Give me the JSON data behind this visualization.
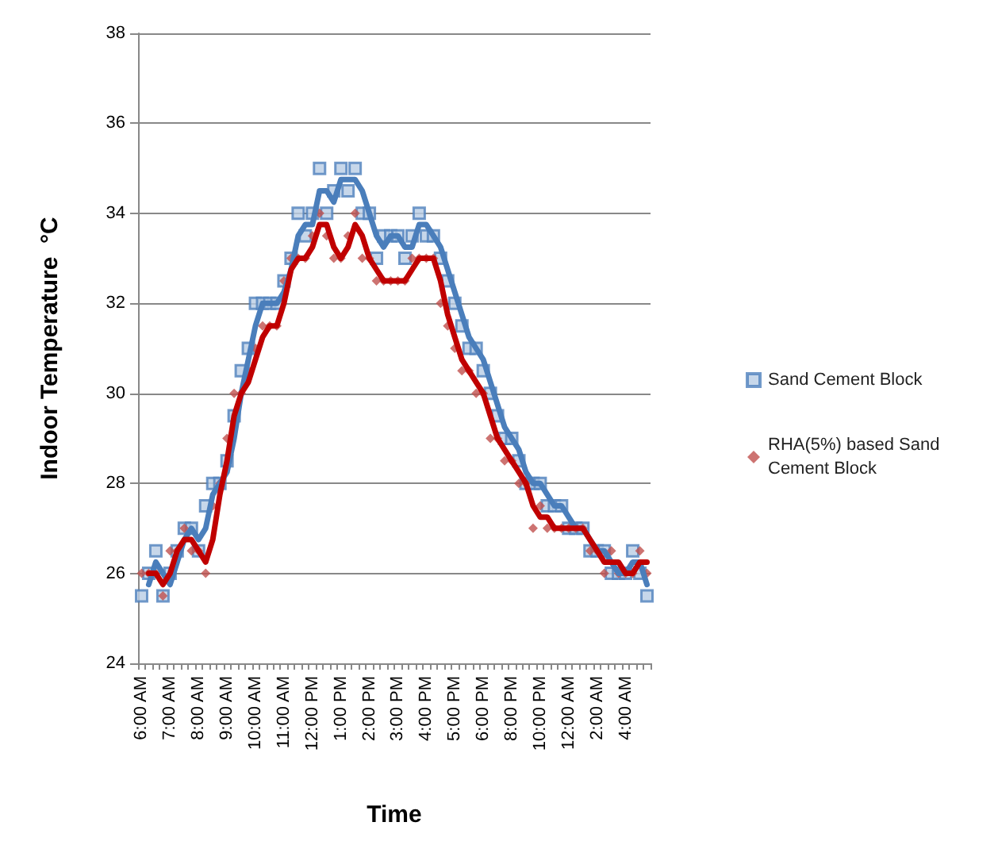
{
  "chart_data": {
    "type": "scatter",
    "xlabel": "Time",
    "ylabel": "Indoor Temperature  °C",
    "categories": [
      "6:00 AM",
      null,
      null,
      null,
      "7:00 AM",
      null,
      null,
      null,
      "8:00 AM",
      null,
      null,
      null,
      "9:00 AM",
      null,
      null,
      null,
      "10:00 AM",
      null,
      null,
      null,
      "11:00 AM",
      null,
      null,
      null,
      "12:00 PM",
      null,
      null,
      null,
      "1:00 PM",
      null,
      null,
      null,
      "2:00 PM",
      null,
      null,
      null,
      "3:00 PM",
      null,
      null,
      null,
      "4:00 PM",
      null,
      null,
      null,
      "5:00 PM",
      null,
      null,
      null,
      "6:00 PM",
      null,
      null,
      null,
      "8:00 PM",
      null,
      null,
      null,
      "10:00 PM",
      null,
      null,
      null,
      "12:00 AM",
      null,
      null,
      null,
      "2:00 AM",
      null,
      null,
      null,
      "4:00 AM",
      null,
      null,
      null
    ],
    "series": [
      {
        "name": "Sand Cement Block",
        "marker": "square",
        "color": "#4f81bd",
        "values": [
          25.5,
          26.0,
          26.5,
          25.5,
          26.0,
          26.5,
          27.0,
          27.0,
          26.5,
          27.5,
          28.0,
          28.0,
          28.5,
          29.5,
          30.5,
          31.0,
          32.0,
          32.0,
          32.0,
          32.0,
          32.5,
          33.0,
          34.0,
          33.5,
          34.0,
          35.0,
          34.0,
          34.5,
          35.0,
          34.5,
          35.0,
          34.0,
          34.0,
          33.0,
          33.5,
          33.5,
          33.5,
          33.0,
          33.5,
          34.0,
          33.5,
          33.5,
          33.0,
          32.5,
          32.0,
          31.5,
          31.0,
          31.0,
          30.5,
          30.0,
          29.5,
          29.0,
          29.0,
          28.5,
          28.0,
          28.0,
          28.0,
          27.5,
          27.5,
          27.5,
          27.0,
          27.0,
          27.0,
          26.5,
          26.5,
          26.5,
          26.0,
          26.0,
          26.0,
          26.5,
          26.0,
          25.5
        ]
      },
      {
        "name": "RHA(5%) based Sand Cement Block",
        "marker": "diamond",
        "color": "#c0504d",
        "values": [
          26.0,
          26.0,
          26.0,
          25.5,
          26.5,
          26.5,
          27.0,
          26.5,
          26.5,
          26.0,
          27.5,
          28.0,
          29.0,
          30.0,
          30.0,
          30.5,
          31.0,
          31.5,
          31.5,
          31.5,
          32.5,
          33.0,
          33.0,
          33.0,
          33.5,
          34.0,
          33.5,
          33.0,
          33.0,
          33.5,
          34.0,
          33.0,
          33.0,
          32.5,
          32.5,
          32.5,
          32.5,
          32.5,
          33.0,
          33.0,
          33.0,
          33.0,
          32.0,
          31.5,
          31.0,
          30.5,
          30.5,
          30.0,
          30.0,
          29.0,
          29.0,
          28.5,
          28.5,
          28.0,
          28.0,
          27.0,
          27.5,
          27.0,
          27.0,
          27.0,
          27.0,
          27.0,
          27.0,
          26.5,
          26.5,
          26.0,
          26.5,
          26.0,
          26.0,
          26.0,
          26.5,
          26.0
        ]
      },
      {
        "type": "line",
        "marker": "none",
        "color": "#4a7ebb",
        "values": [
          null,
          25.75,
          26.25,
          26.0,
          25.75,
          26.25,
          26.75,
          27.0,
          26.75,
          27.0,
          27.75,
          28.0,
          28.25,
          29.0,
          30.0,
          30.75,
          31.5,
          32.0,
          32.0,
          32.0,
          32.25,
          32.75,
          33.5,
          33.75,
          33.75,
          34.5,
          34.5,
          34.25,
          34.75,
          34.75,
          34.75,
          34.5,
          34.0,
          33.5,
          33.25,
          33.5,
          33.5,
          33.25,
          33.25,
          33.75,
          33.75,
          33.5,
          33.25,
          32.75,
          32.25,
          31.75,
          31.25,
          31.0,
          30.75,
          30.25,
          29.75,
          29.25,
          29.0,
          28.75,
          28.25,
          28.0,
          28.0,
          27.75,
          27.5,
          27.5,
          27.25,
          27.0,
          27.0,
          26.75,
          26.5,
          26.5,
          26.25,
          26.0,
          26.0,
          26.25,
          26.25,
          25.75
        ]
      },
      {
        "type": "line",
        "marker": "none",
        "color": "#c00000",
        "values": [
          null,
          26.0,
          26.0,
          25.75,
          26.0,
          26.5,
          26.75,
          26.75,
          26.5,
          26.25,
          26.75,
          27.75,
          28.5,
          29.5,
          30.0,
          30.25,
          30.75,
          31.25,
          31.5,
          31.5,
          32.0,
          32.75,
          33.0,
          33.0,
          33.25,
          33.75,
          33.75,
          33.25,
          33.0,
          33.25,
          33.75,
          33.5,
          33.0,
          32.75,
          32.5,
          32.5,
          32.5,
          32.5,
          32.75,
          33.0,
          33.0,
          33.0,
          32.5,
          31.75,
          31.25,
          30.75,
          30.5,
          30.25,
          30.0,
          29.5,
          29.0,
          28.75,
          28.5,
          28.25,
          28.0,
          27.5,
          27.25,
          27.25,
          27.0,
          27.0,
          27.0,
          27.0,
          27.0,
          26.75,
          26.5,
          26.25,
          26.25,
          26.25,
          26.0,
          26.0,
          26.25,
          26.25
        ]
      }
    ],
    "ylim": [
      24,
      38
    ],
    "yticks": [
      24,
      26,
      28,
      30,
      32,
      34,
      36,
      38
    ],
    "grid": "y",
    "legend": "right",
    "line_style": "solid"
  }
}
